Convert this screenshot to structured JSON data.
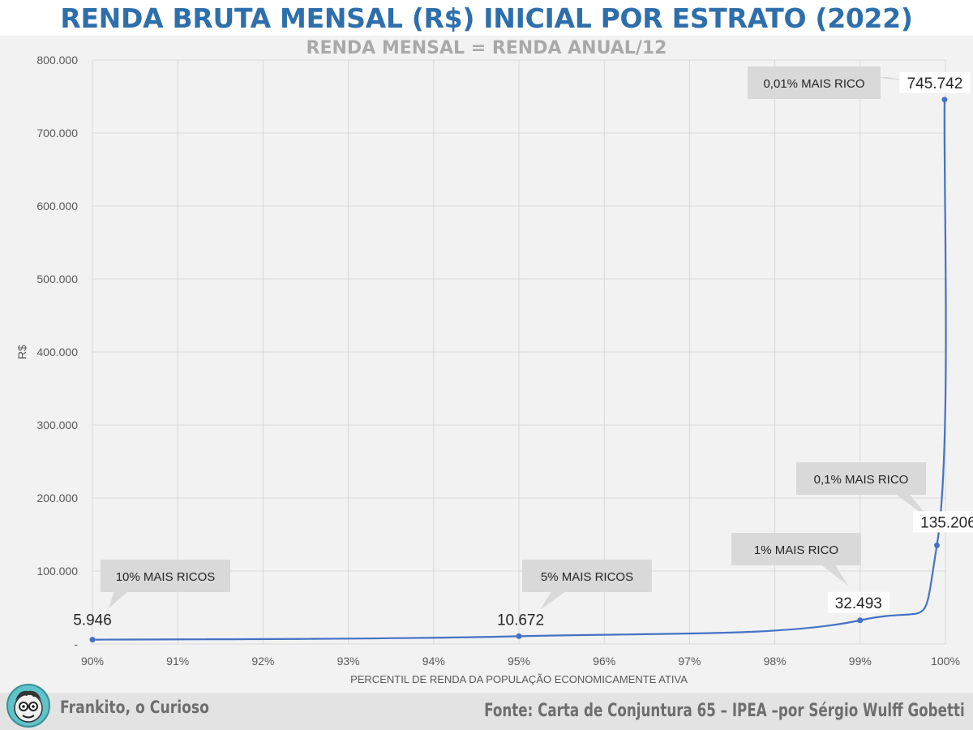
{
  "chart_data": {
    "type": "line",
    "title": "RENDA BRUTA MENSAL (R$) INICIAL POR ESTRATO (2022)",
    "subtitle": "RENDA MENSAL = RENDA ANUAL/12",
    "xlabel": "PERCENTIL DE RENDA DA POPULAÇÃO ECONOMICAMENTE ATIVA",
    "ylabel": "R$",
    "ylim": [
      0,
      800000
    ],
    "xlim": [
      90,
      100
    ],
    "grid": true,
    "x_ticks": [
      "90%",
      "91%",
      "92%",
      "93%",
      "94%",
      "95%",
      "96%",
      "97%",
      "98%",
      "99%",
      "100%"
    ],
    "y_ticks": [
      "-",
      "100.000",
      "200.000",
      "300.000",
      "400.000",
      "500.000",
      "600.000",
      "700.000",
      "800.000"
    ],
    "series": [
      {
        "color": "#4472c4",
        "points": [
          {
            "x": 90,
            "y": 5946,
            "label": "5.946"
          },
          {
            "x": 95,
            "y": 10672,
            "label": "10.672"
          },
          {
            "x": 99,
            "y": 32493,
            "label": "32.493"
          },
          {
            "x": 99.9,
            "y": 135206,
            "label": "135.206"
          },
          {
            "x": 99.99,
            "y": 745742,
            "label": "745.742"
          }
        ]
      }
    ],
    "annotations": [
      {
        "text": "10% MAIS RICOS"
      },
      {
        "text": "5% MAIS RICOS"
      },
      {
        "text": "1% MAIS RICO"
      },
      {
        "text": "0,1% MAIS RICO"
      },
      {
        "text": "0,01% MAIS RICO"
      }
    ]
  },
  "footer": {
    "author": "Frankito, o Curioso",
    "source": "Fonte: Carta de Conjuntura 65 – IPEA –por Sérgio Wulff Gobetti"
  },
  "colors": {
    "title": "#2e6fab",
    "subtitle": "#a9a9a9",
    "line": "#4472c4",
    "chart_bg": "#f2f2f2",
    "callout_bg": "#d9d9d9",
    "footer_bg": "#e3e3e3"
  }
}
